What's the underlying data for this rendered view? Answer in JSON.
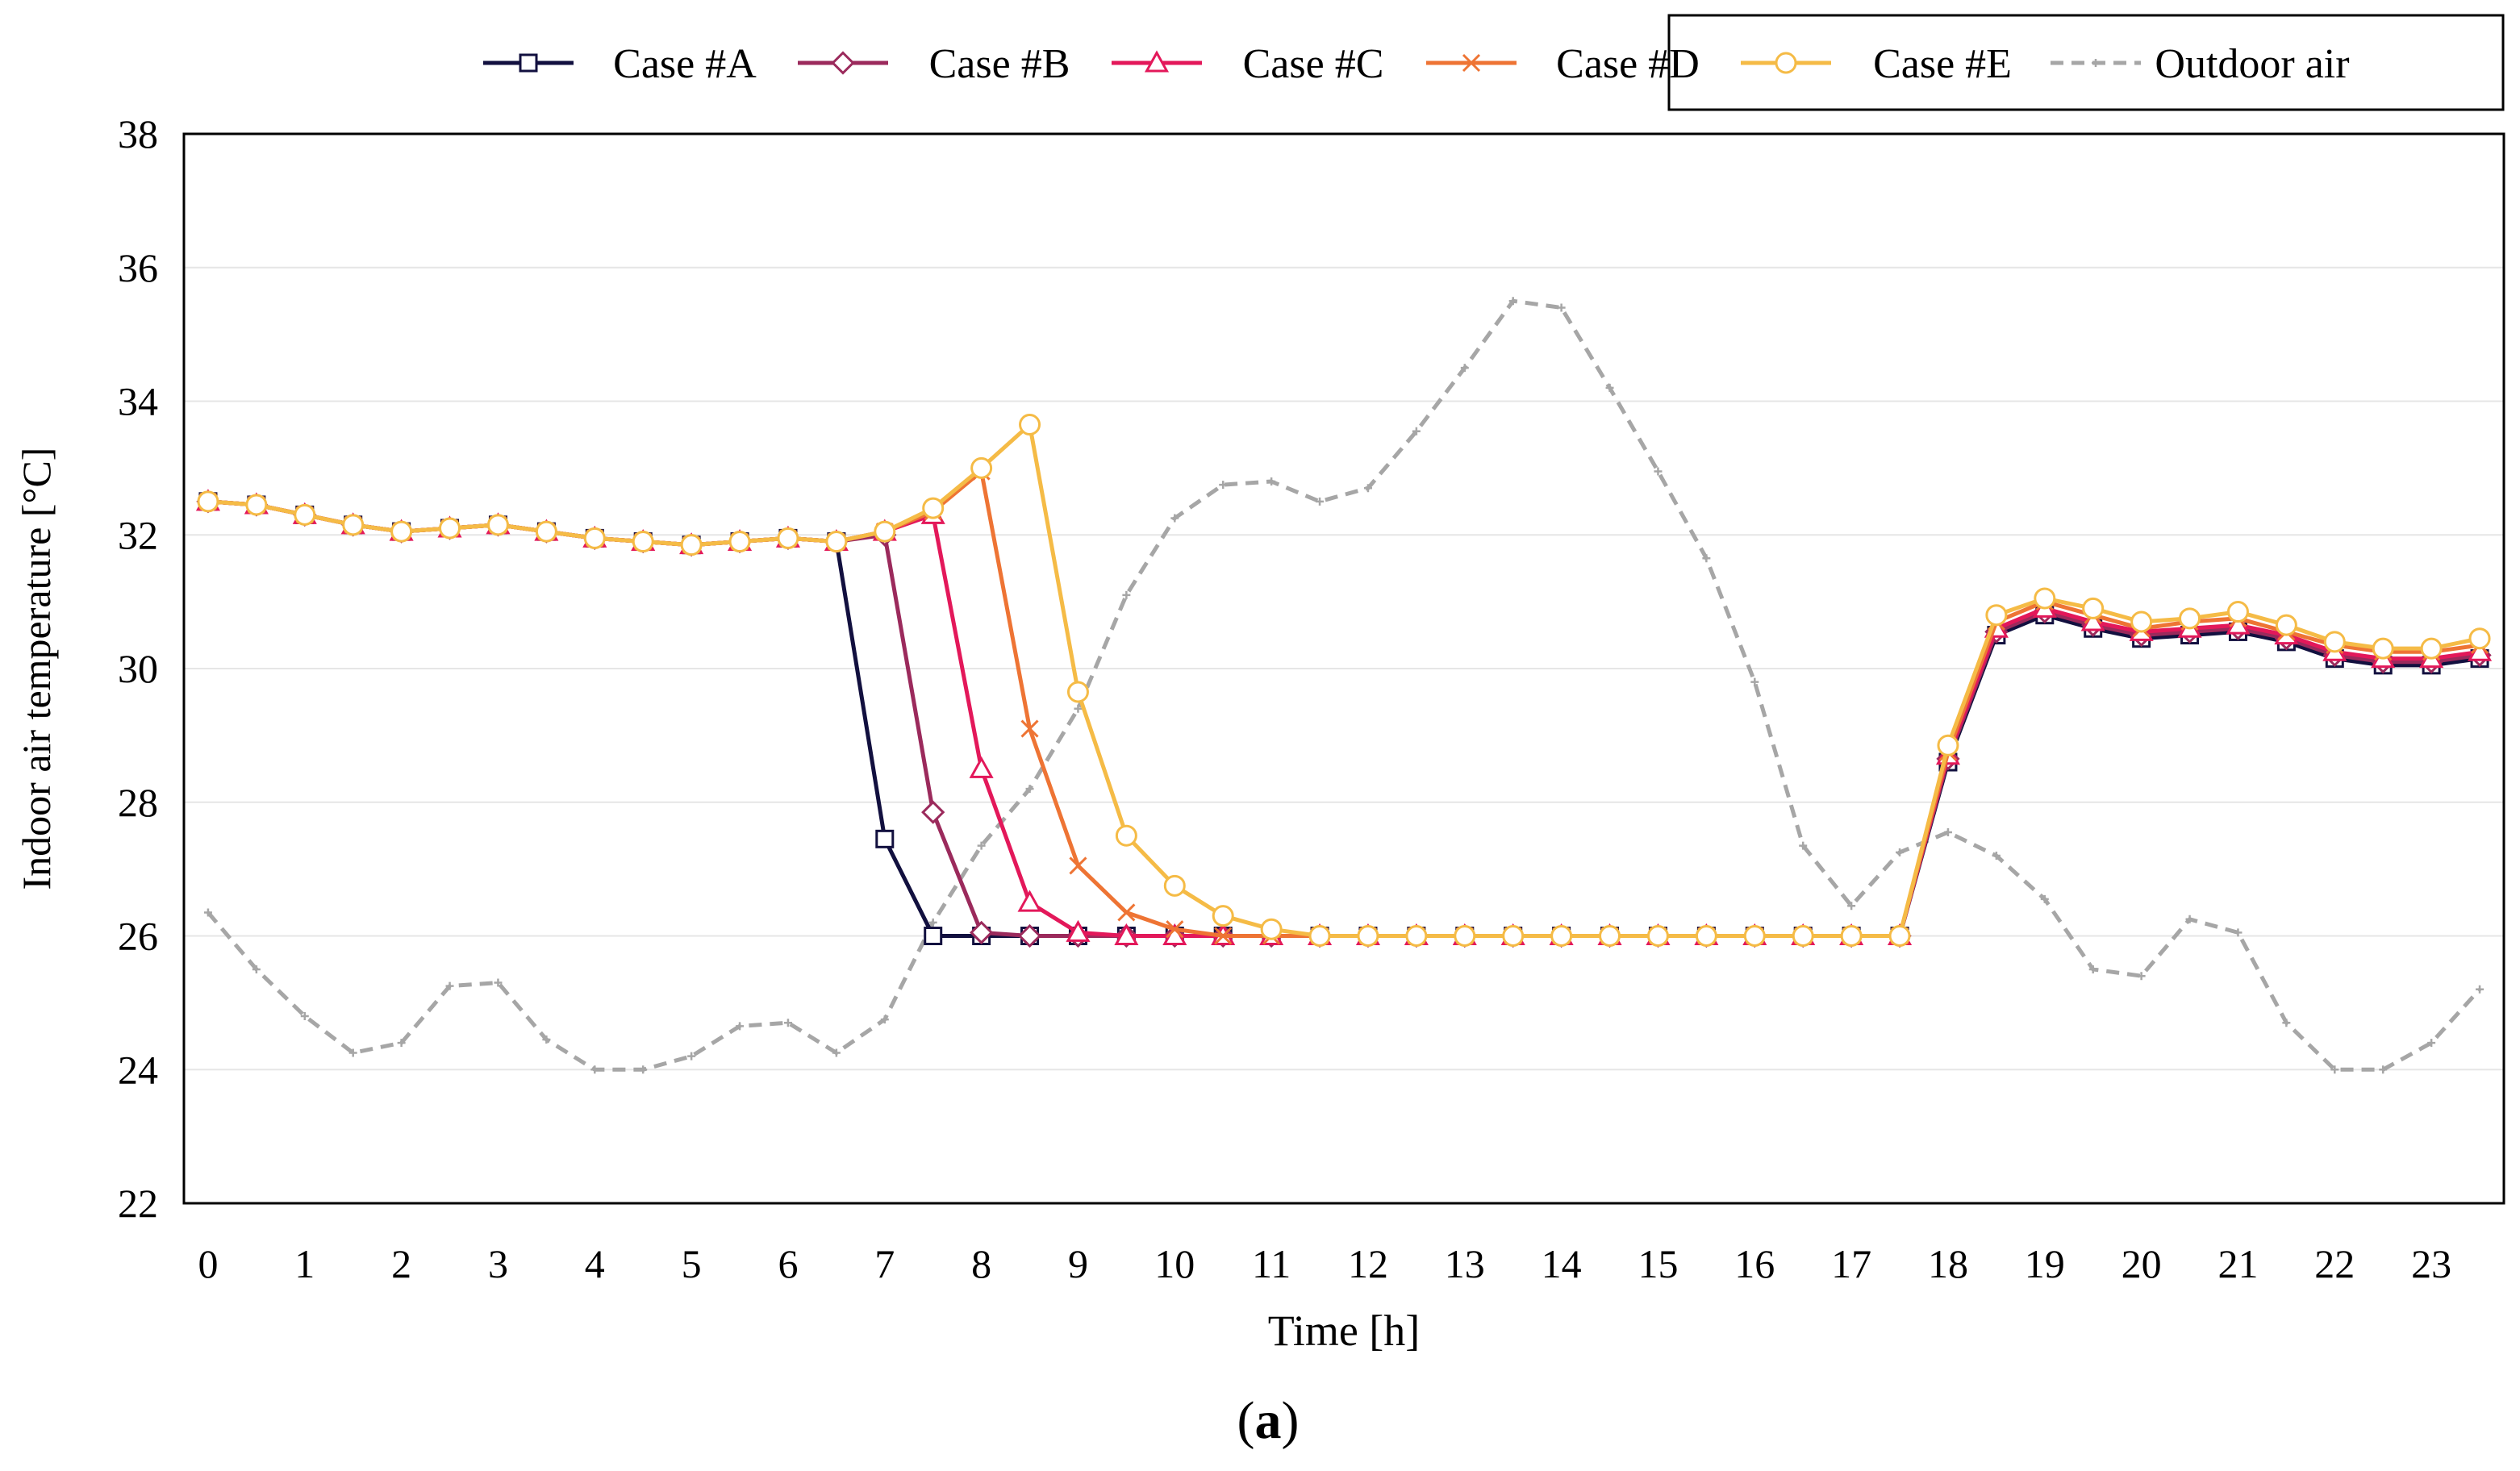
{
  "figure_label": {
    "open": "(",
    "letter": "a",
    "close": ")"
  },
  "chart_data": {
    "type": "line",
    "xlabel": "Time [h]",
    "ylabel": "Indoor air temperature [°C]",
    "xlim": [
      -0.25,
      23.75
    ],
    "ylim": [
      22,
      38
    ],
    "x_ticks": [
      0,
      1,
      2,
      3,
      4,
      5,
      6,
      7,
      8,
      9,
      10,
      11,
      12,
      13,
      14,
      15,
      16,
      17,
      18,
      19,
      20,
      21,
      22,
      23
    ],
    "y_ticks": [
      22,
      24,
      26,
      28,
      30,
      32,
      34,
      36,
      38
    ],
    "grid": "horizontal",
    "legend_position": "top-right",
    "x": [
      0,
      0.5,
      1,
      1.5,
      2,
      2.5,
      3,
      3.5,
      4,
      4.5,
      5,
      5.5,
      6,
      6.5,
      7,
      7.5,
      8,
      8.5,
      9,
      9.5,
      10,
      10.5,
      11,
      11.5,
      12,
      12.5,
      13,
      13.5,
      14,
      14.5,
      15,
      15.5,
      16,
      16.5,
      17,
      17.5,
      18,
      18.5,
      19,
      19.5,
      20,
      20.5,
      21,
      21.5,
      22,
      22.5,
      23,
      23.5
    ],
    "series": [
      {
        "name": "Case #A",
        "color": "#12103f",
        "marker": "square",
        "line": "solid",
        "values": [
          32.5,
          32.45,
          32.3,
          32.15,
          32.05,
          32.1,
          32.15,
          32.05,
          31.95,
          31.9,
          31.85,
          31.9,
          31.95,
          31.9,
          27.45,
          26.0,
          26.0,
          26.0,
          26.0,
          26.0,
          26.0,
          26.0,
          26.0,
          26.0,
          26.0,
          26.0,
          26.0,
          26.0,
          26.0,
          26.0,
          26.0,
          26.0,
          26.0,
          26.0,
          26.0,
          26.0,
          28.6,
          30.5,
          30.8,
          30.6,
          30.45,
          30.5,
          30.55,
          30.4,
          30.15,
          30.05,
          30.05,
          30.15
        ]
      },
      {
        "name": "Case #B",
        "color": "#9b2a5c",
        "marker": "diamond",
        "line": "solid",
        "values": [
          32.5,
          32.45,
          32.3,
          32.15,
          32.05,
          32.1,
          32.15,
          32.05,
          31.95,
          31.9,
          31.85,
          31.9,
          31.95,
          31.9,
          32.0,
          27.85,
          26.05,
          26.0,
          26.0,
          26.0,
          26.0,
          26.0,
          26.0,
          26.0,
          26.0,
          26.0,
          26.0,
          26.0,
          26.0,
          26.0,
          26.0,
          26.0,
          26.0,
          26.0,
          26.0,
          26.0,
          28.65,
          30.55,
          30.85,
          30.65,
          30.5,
          30.55,
          30.6,
          30.45,
          30.2,
          30.1,
          30.1,
          30.2
        ]
      },
      {
        "name": "Case #C",
        "color": "#e3185a",
        "marker": "triangle",
        "line": "solid",
        "values": [
          32.5,
          32.45,
          32.3,
          32.15,
          32.05,
          32.1,
          32.15,
          32.05,
          31.95,
          31.9,
          31.85,
          31.9,
          31.95,
          31.9,
          32.05,
          32.3,
          28.5,
          26.5,
          26.05,
          26.0,
          26.0,
          26.0,
          26.0,
          26.0,
          26.0,
          26.0,
          26.0,
          26.0,
          26.0,
          26.0,
          26.0,
          26.0,
          26.0,
          26.0,
          26.0,
          26.0,
          28.7,
          30.6,
          30.9,
          30.7,
          30.55,
          30.6,
          30.65,
          30.5,
          30.25,
          30.15,
          30.15,
          30.25
        ]
      },
      {
        "name": "Case #D",
        "color": "#ee7434",
        "marker": "x",
        "line": "solid",
        "values": [
          32.5,
          32.45,
          32.3,
          32.15,
          32.05,
          32.1,
          32.15,
          32.05,
          31.95,
          31.9,
          31.85,
          31.9,
          31.95,
          31.9,
          32.05,
          32.35,
          32.95,
          29.1,
          27.05,
          26.35,
          26.1,
          26.0,
          26.0,
          26.0,
          26.0,
          26.0,
          26.0,
          26.0,
          26.0,
          26.0,
          26.0,
          26.0,
          26.0,
          26.0,
          26.0,
          26.0,
          28.75,
          30.7,
          31.0,
          30.8,
          30.6,
          30.7,
          30.75,
          30.55,
          30.35,
          30.25,
          30.25,
          30.35
        ]
      },
      {
        "name": "Case #E",
        "color": "#f5bb46",
        "marker": "circle",
        "line": "solid",
        "values": [
          32.5,
          32.45,
          32.3,
          32.15,
          32.05,
          32.1,
          32.15,
          32.05,
          31.95,
          31.9,
          31.85,
          31.9,
          31.95,
          31.9,
          32.05,
          32.4,
          33.0,
          33.65,
          29.65,
          27.5,
          26.75,
          26.3,
          26.1,
          26.0,
          26.0,
          26.0,
          26.0,
          26.0,
          26.0,
          26.0,
          26.0,
          26.0,
          26.0,
          26.0,
          26.0,
          26.0,
          28.85,
          30.8,
          31.05,
          30.9,
          30.7,
          30.75,
          30.85,
          30.65,
          30.4,
          30.3,
          30.3,
          30.45
        ]
      },
      {
        "name": "Outdoor air",
        "color": "#a6a6a6",
        "marker": "plus",
        "line": "dashed",
        "values": [
          26.35,
          25.5,
          24.8,
          24.25,
          24.4,
          25.25,
          25.3,
          24.45,
          24.0,
          24.0,
          24.2,
          24.65,
          24.7,
          24.25,
          24.75,
          26.2,
          27.35,
          28.2,
          29.4,
          31.1,
          32.25,
          32.75,
          32.8,
          32.5,
          32.7,
          33.55,
          34.5,
          35.5,
          35.4,
          34.2,
          32.95,
          31.65,
          29.8,
          27.35,
          26.45,
          27.25,
          27.55,
          27.2,
          26.55,
          25.5,
          25.4,
          26.25,
          26.05,
          24.7,
          24.0,
          24.0,
          24.4,
          25.2
        ]
      }
    ]
  }
}
